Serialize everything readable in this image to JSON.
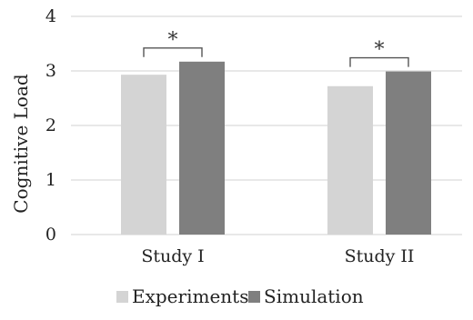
{
  "chart_data": {
    "type": "bar",
    "ylabel": "Cognitive Load",
    "ylim": [
      0,
      4
    ],
    "yticks": [
      "0",
      "1",
      "2",
      "3",
      "4"
    ],
    "categories": [
      "Study I",
      "Study II"
    ],
    "series": [
      {
        "name": "Experiments",
        "color": "#d4d4d4",
        "values": [
          2.93,
          2.72
        ]
      },
      {
        "name": "Simulation",
        "color": "#7f7f7f",
        "values": [
          3.17,
          2.99
        ]
      }
    ],
    "annotations": [
      {
        "category": "Study I",
        "text": "*"
      },
      {
        "category": "Study II",
        "text": "*"
      }
    ],
    "grid": true,
    "legend_position": "bottom"
  }
}
